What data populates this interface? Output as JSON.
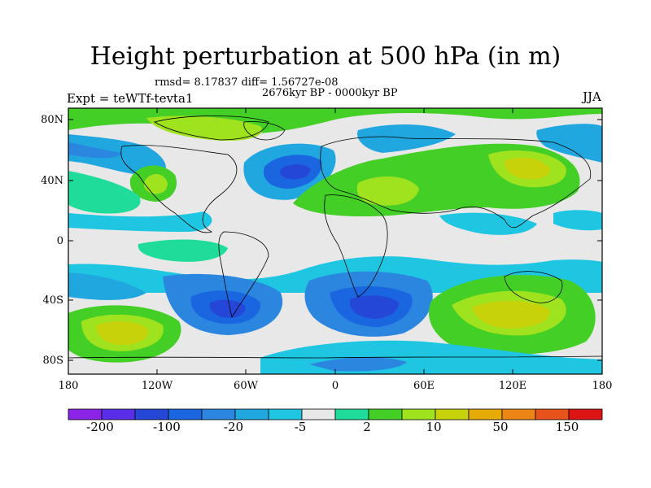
{
  "title": "Height perturbation at 500 hPa (in m)",
  "stats": "rmsd= 8.17837 diff= 1.56727e-08",
  "period": "2676kyr BP - 0000kyr BP",
  "experiment": "Expt = teWTf-tevta1",
  "season": "JJA",
  "map": {
    "lat_labels": [
      "80N",
      "40N",
      "0",
      "40S",
      "80S"
    ],
    "lon_labels": [
      "180",
      "120W",
      "60W",
      "0",
      "60E",
      "120E",
      "180"
    ]
  },
  "colorbar": {
    "colors": [
      "#8b24e6",
      "#5a2ee8",
      "#2547d8",
      "#1966e0",
      "#2a86df",
      "#20a7df",
      "#1fc6e2",
      "#e8e8e8",
      "#20dc9a",
      "#43cf26",
      "#9fe21e",
      "#c8d20a",
      "#e6ab06",
      "#ec8516",
      "#e8521b",
      "#dc1414"
    ],
    "labels": [
      "-200",
      "-100",
      "-20",
      "-5",
      "2",
      "10",
      "50",
      "150"
    ]
  }
}
